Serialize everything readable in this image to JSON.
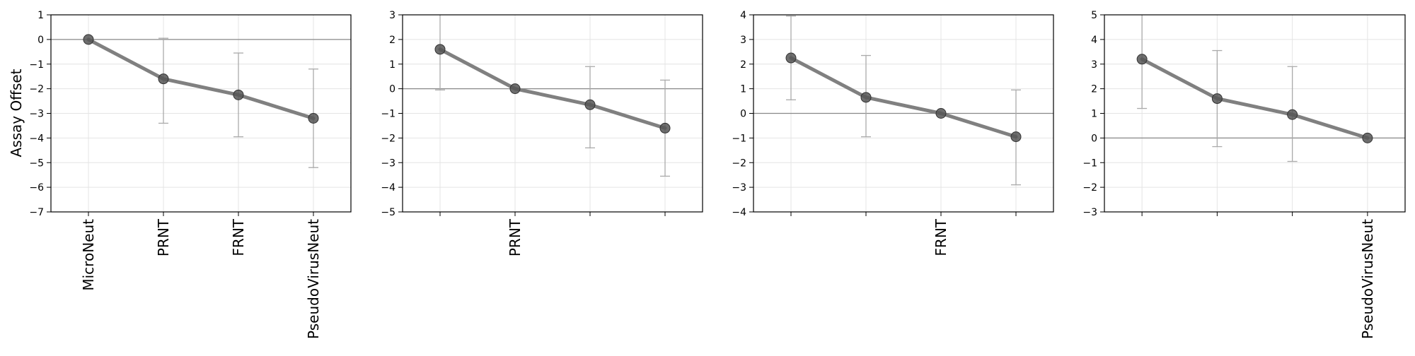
{
  "figure": {
    "ylabel": "Assay Offset"
  },
  "chart_data": [
    {
      "type": "line",
      "reference": "MicroNeut",
      "categories": [
        "MicroNeut",
        "PRNT",
        "FRNT",
        "PseudoVirusNeut"
      ],
      "shown_tick_labels": [
        "MicroNeut",
        "PRNT",
        "FRNT",
        "PseudoVirusNeut"
      ],
      "values": [
        0,
        -1.6,
        -2.25,
        -3.2
      ],
      "errors": [
        null,
        [
          -3.4,
          0.05
        ],
        [
          -3.95,
          -0.55
        ],
        [
          -5.2,
          -1.2
        ]
      ],
      "ylim": [
        -7,
        1
      ],
      "yticks": [
        1,
        0,
        -1,
        -2,
        -3,
        -4,
        -5,
        -6,
        -7
      ],
      "ylabel": "Assay Offset",
      "grid": true
    },
    {
      "type": "line",
      "reference": "PRNT",
      "categories": [
        "MicroNeut",
        "PRNT",
        "FRNT",
        "PseudoVirusNeut"
      ],
      "shown_tick_labels": [
        "",
        "PRNT",
        "",
        ""
      ],
      "values": [
        1.6,
        0,
        -0.65,
        -1.6
      ],
      "errors": [
        [
          -0.05,
          3.4
        ],
        null,
        [
          -2.4,
          0.9
        ],
        [
          -3.55,
          0.35
        ]
      ],
      "ylim": [
        -5,
        3
      ],
      "yticks": [
        3,
        2,
        1,
        0,
        -1,
        -2,
        -3,
        -4,
        -5
      ],
      "grid": true
    },
    {
      "type": "line",
      "reference": "FRNT",
      "categories": [
        "MicroNeut",
        "PRNT",
        "FRNT",
        "PseudoVirusNeut"
      ],
      "shown_tick_labels": [
        "",
        "",
        "FRNT",
        ""
      ],
      "values": [
        2.25,
        0.65,
        0,
        -0.95
      ],
      "errors": [
        [
          0.55,
          3.95
        ],
        [
          -0.95,
          2.35
        ],
        null,
        [
          -2.9,
          0.95
        ]
      ],
      "ylim": [
        -4,
        4
      ],
      "yticks": [
        4,
        3,
        2,
        1,
        0,
        -1,
        -2,
        -3,
        -4
      ],
      "grid": true
    },
    {
      "type": "line",
      "reference": "PseudoVirusNeut",
      "categories": [
        "MicroNeut",
        "PRNT",
        "FRNT",
        "PseudoVirusNeut"
      ],
      "shown_tick_labels": [
        "",
        "",
        "",
        "PseudoVirusNeut"
      ],
      "values": [
        3.2,
        1.6,
        0.95,
        0
      ],
      "errors": [
        [
          1.2,
          5.2
        ],
        [
          -0.35,
          3.55
        ],
        [
          -0.95,
          2.9
        ],
        null
      ],
      "ylim": [
        -3,
        5
      ],
      "yticks": [
        5,
        4,
        3,
        2,
        1,
        0,
        -1,
        -2,
        -3
      ],
      "grid": true
    }
  ],
  "colors": {
    "line": "#808080",
    "marker": "#555555",
    "errorbar": "#aaaaaa",
    "zero_line": "#888888",
    "grid": "#e4e4e4",
    "axis": "#000000"
  }
}
